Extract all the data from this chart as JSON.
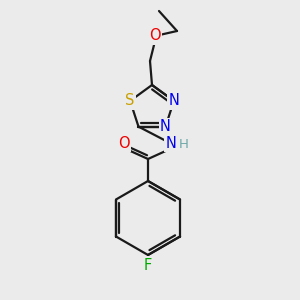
{
  "bg_color": "#ebebeb",
  "bond_color": "#1a1a1a",
  "line_width": 1.6,
  "atom_colors": {
    "S": "#c8a000",
    "N": "#0000ee",
    "O": "#ee0000",
    "F": "#00aa00",
    "H": "#6fa8a8",
    "C": "#1a1a1a"
  },
  "font_size": 10.5,
  "font_size_small": 9.5
}
